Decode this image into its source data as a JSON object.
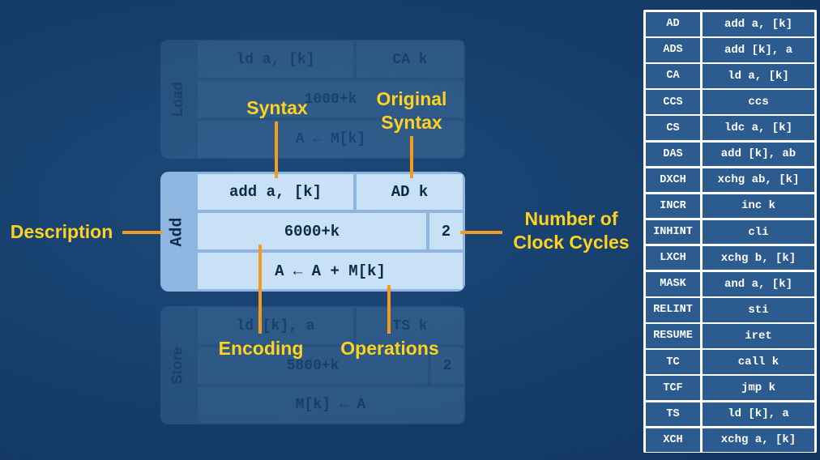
{
  "ghost_top": {
    "side": "Load",
    "syntax": "ld a, [k]",
    "original": "CA k",
    "encoding": "1000+k",
    "operation": "A ← M[k]"
  },
  "main_card": {
    "side": "Add",
    "syntax": "add a, [k]",
    "original": "AD k",
    "encoding": "6000+k",
    "cycles": "2",
    "operation": "A ← A + M[k]"
  },
  "ghost_bottom": {
    "side": "Store",
    "syntax": "ld [k], a",
    "original": "TS k",
    "encoding": "5800+k",
    "cycles": "2",
    "operation": "M[k] ← A"
  },
  "labels": {
    "syntax": "Syntax",
    "original_syntax": "Original\nSyntax",
    "description": "Description",
    "clock_cycles": "Number of\nClock Cycles",
    "encoding": "Encoding",
    "operations": "Operations"
  },
  "accent_colors": {
    "label": "#ffd21f",
    "line": "#f29b1d",
    "card": "#c9e1f7",
    "table_cell": "#2c5b8f"
  },
  "mapping_table": [
    {
      "original": "AD",
      "modern": "add a, [k]"
    },
    {
      "original": "ADS",
      "modern": "add [k], a"
    },
    {
      "original": "CA",
      "modern": "ld a, [k]"
    },
    {
      "original": "CCS",
      "modern": "ccs"
    },
    {
      "original": "CS",
      "modern": "ldc a, [k]"
    },
    {
      "original": "DAS",
      "modern": "add [k], ab"
    },
    {
      "original": "DXCH",
      "modern": "xchg ab, [k]"
    },
    {
      "original": "INCR",
      "modern": "inc k"
    },
    {
      "original": "INHINT",
      "modern": "cli"
    },
    {
      "original": "LXCH",
      "modern": "xchg b, [k]"
    },
    {
      "original": "MASK",
      "modern": "and a, [k]"
    },
    {
      "original": "RELINT",
      "modern": "sti"
    },
    {
      "original": "RESUME",
      "modern": "iret"
    },
    {
      "original": "TC",
      "modern": "call k"
    },
    {
      "original": "TCF",
      "modern": "jmp k"
    },
    {
      "original": "TS",
      "modern": "ld [k], a"
    },
    {
      "original": "XCH",
      "modern": "xchg a, [k]"
    }
  ]
}
